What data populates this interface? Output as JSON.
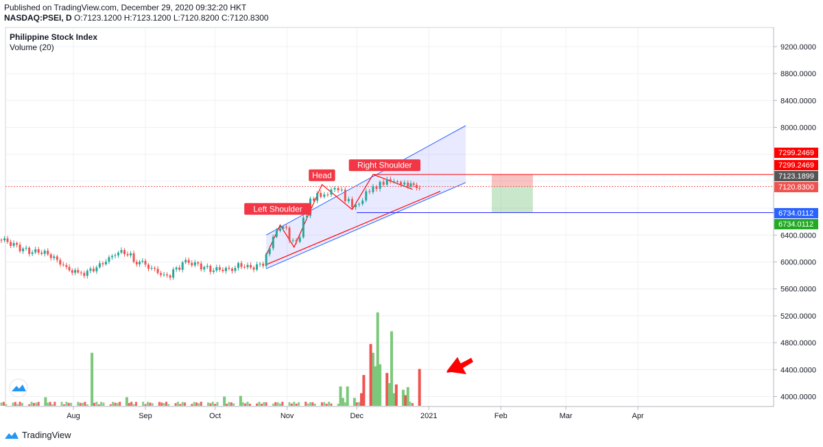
{
  "header": {
    "published": "Published on TradingView.com, December 29, 2020 09:32:20 HKT",
    "symbol": "NASDAQ:PSEI, D",
    "ohlc": "O:7123.1200 H:7123.1200 L:7120.8200 C:7120.8300"
  },
  "legend": {
    "title": "Philippine Stock Index",
    "volume": "Volume (20)"
  },
  "footer": {
    "brand": "TradingView"
  },
  "colors": {
    "up": "#26a69a",
    "down": "#ef5350",
    "channel": "#2962ff",
    "volUp": "#7bc87b",
    "volDown": "#ef5350",
    "red": "#ff0000"
  },
  "chart_data": {
    "type": "candlestick",
    "y_ticks": [
      "9200.0000",
      "8800.0000",
      "8400.0000",
      "8000.0000",
      "6400.0000",
      "6000.0000",
      "5600.0000",
      "5200.0000",
      "4800.0000",
      "4400.0000",
      "4000.0000"
    ],
    "y_tick_values": [
      9200,
      8800,
      8400,
      8000,
      6400,
      6000,
      5600,
      5200,
      4800,
      4400,
      4000
    ],
    "x_ticks": [
      "Aug",
      "Sep",
      "Oct",
      "Nov",
      "Dec",
      "2021",
      "Feb",
      "Mar",
      "Apr"
    ],
    "x_tick_dates": [
      "2020-08-01",
      "2020-09-01",
      "2020-10-01",
      "2020-11-01",
      "2020-12-01",
      "2021-01-01",
      "2021-02-01",
      "2021-03-01",
      "2021-04-01"
    ],
    "price_labels": [
      {
        "text": "7299.2469",
        "value": 7299.2469,
        "color": "#ff0000"
      },
      {
        "text": "7299.2469",
        "value": 7299.2469,
        "color": "#ff0000"
      },
      {
        "text": "7123.1899",
        "value": 7123.1899,
        "color": "#555555"
      },
      {
        "text": "7120.8300",
        "value": 7120.83,
        "color": "#ef5350"
      },
      {
        "text": "6734.0112",
        "value": 6734.0112,
        "color": "#2962ff"
      },
      {
        "text": "6734.0112",
        "value": 6734.0112,
        "color": "#22aa22"
      }
    ],
    "annotations": [
      {
        "text": "Left Shoulder",
        "date": "2020-10-28",
        "value": 6650
      },
      {
        "text": "Head",
        "date": "2020-11-16",
        "value": 7150
      },
      {
        "text": "Right Shoulder",
        "date": "2020-12-13",
        "value": 7300
      }
    ],
    "closes": [
      {
        "date": "2020-07-01",
        "close": 6330
      },
      {
        "date": "2020-07-05",
        "close": 6270
      },
      {
        "date": "2020-07-09",
        "close": 6200
      },
      {
        "date": "2020-07-13",
        "close": 6150
      },
      {
        "date": "2020-07-17",
        "close": 6160
      },
      {
        "date": "2020-07-21",
        "close": 6120
      },
      {
        "date": "2020-07-25",
        "close": 6020
      },
      {
        "date": "2020-07-29",
        "close": 5900
      },
      {
        "date": "2020-08-03",
        "close": 5810
      },
      {
        "date": "2020-08-07",
        "close": 5850
      },
      {
        "date": "2020-08-11",
        "close": 5920
      },
      {
        "date": "2020-08-15",
        "close": 6020
      },
      {
        "date": "2020-08-19",
        "close": 6130
      },
      {
        "date": "2020-08-23",
        "close": 6160
      },
      {
        "date": "2020-08-27",
        "close": 6010
      },
      {
        "date": "2020-09-01",
        "close": 5950
      },
      {
        "date": "2020-09-05",
        "close": 5880
      },
      {
        "date": "2020-09-09",
        "close": 5770
      },
      {
        "date": "2020-09-13",
        "close": 5850
      },
      {
        "date": "2020-09-17",
        "close": 6000
      },
      {
        "date": "2020-09-21",
        "close": 5980
      },
      {
        "date": "2020-09-25",
        "close": 5930
      },
      {
        "date": "2020-09-29",
        "close": 5880
      },
      {
        "date": "2020-10-03",
        "close": 5900
      },
      {
        "date": "2020-10-07",
        "close": 5880
      },
      {
        "date": "2020-10-11",
        "close": 5960
      },
      {
        "date": "2020-10-15",
        "close": 5920
      },
      {
        "date": "2020-10-19",
        "close": 5920
      },
      {
        "date": "2020-10-23",
        "close": 6050
      },
      {
        "date": "2020-10-26",
        "close": 6350
      },
      {
        "date": "2020-10-29",
        "close": 6550
      },
      {
        "date": "2020-11-02",
        "close": 6380
      },
      {
        "date": "2020-11-05",
        "close": 6250
      },
      {
        "date": "2020-11-08",
        "close": 6600
      },
      {
        "date": "2020-11-11",
        "close": 6900
      },
      {
        "date": "2020-11-14",
        "close": 7000
      },
      {
        "date": "2020-11-17",
        "close": 6950
      },
      {
        "date": "2020-11-20",
        "close": 7050
      },
      {
        "date": "2020-11-23",
        "close": 7100
      },
      {
        "date": "2020-11-26",
        "close": 6950
      },
      {
        "date": "2020-11-29",
        "close": 6850
      },
      {
        "date": "2020-12-02",
        "close": 6850
      },
      {
        "date": "2020-12-05",
        "close": 7050
      },
      {
        "date": "2020-12-08",
        "close": 7100
      },
      {
        "date": "2020-12-11",
        "close": 7150
      },
      {
        "date": "2020-12-14",
        "close": 7200
      },
      {
        "date": "2020-12-17",
        "close": 7180
      },
      {
        "date": "2020-12-20",
        "close": 7150
      },
      {
        "date": "2020-12-23",
        "close": 7140
      },
      {
        "date": "2020-12-28",
        "close": 7121
      }
    ],
    "volume_highlights": [
      {
        "date": "2020-08-09",
        "value": 4650,
        "dir": "up"
      },
      {
        "date": "2020-11-27",
        "value": 4150,
        "dir": "up"
      },
      {
        "date": "2020-12-07",
        "value": 4780,
        "dir": "down"
      },
      {
        "date": "2020-12-10",
        "value": 5250,
        "dir": "up"
      },
      {
        "date": "2020-12-16",
        "value": 4970,
        "dir": "up"
      },
      {
        "date": "2020-12-28",
        "value": 4410,
        "dir": "down"
      }
    ]
  }
}
